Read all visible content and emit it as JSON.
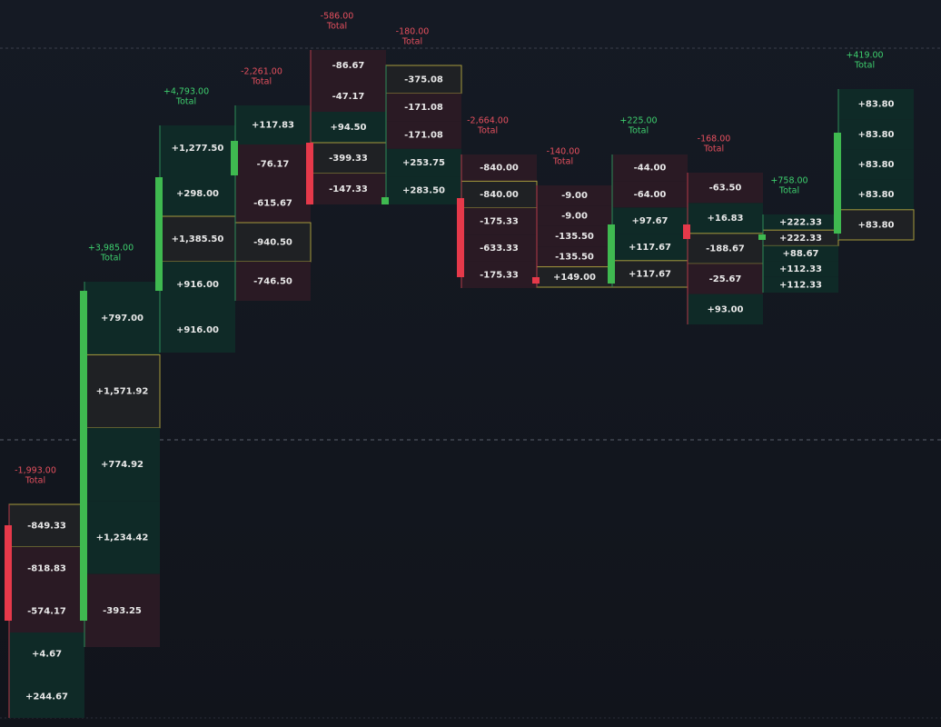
{
  "columns": [
    {
      "total": "-1,993.00",
      "total_label": "Total",
      "cells": [
        "-849.33",
        "-818.83",
        "-574.17",
        "+4.67",
        "+244.67"
      ],
      "highlighted": 0
    },
    {
      "total": "+3,985.00",
      "total_label": "Total",
      "cells": [
        "+797.00",
        "+1,571.92",
        "+774.92",
        "+1,234.42",
        "-393.25"
      ],
      "highlighted": 1
    },
    {
      "total": "+4,793.00",
      "total_label": "Total",
      "cells": [
        "+1,277.50",
        "+298.00",
        "+1,385.50",
        "+916.00",
        "+916.00"
      ],
      "highlighted": 2
    },
    {
      "total": "-2,261.00",
      "total_label": "Total",
      "cells": [
        "+117.83",
        "-76.17",
        "-615.67",
        "-940.50",
        "-746.50"
      ],
      "highlighted": 3
    },
    {
      "total": "-586.00",
      "total_label": "Total",
      "cells": [
        "-86.67",
        "-47.17",
        "+94.50",
        "-399.33",
        "-147.33"
      ],
      "highlighted": 3
    },
    {
      "total": "-180.00",
      "total_label": "Total",
      "cells": [
        "-375.08",
        "-171.08",
        "-171.08",
        "+253.75",
        "+283.50"
      ],
      "highlighted": 0
    },
    {
      "total": "-2,664.00",
      "total_label": "Total",
      "cells": [
        "-840.00",
        "-840.00",
        "-175.33",
        "-633.33",
        "-175.33"
      ],
      "highlighted": 1
    },
    {
      "total": "-140.00",
      "total_label": "Total",
      "cells": [
        "-9.00",
        "-9.00",
        "-135.50",
        "-135.50",
        "+149.00"
      ],
      "highlighted": 4
    },
    {
      "total": "+225.00",
      "total_label": "Total",
      "cells": [
        "-44.00",
        "-64.00",
        "+97.67",
        "+117.67",
        "+117.67"
      ],
      "highlighted": 4
    },
    {
      "total": "-168.00",
      "total_label": "Total",
      "cells": [
        "-63.50",
        "+16.83",
        "-188.67",
        "-25.67",
        "+93.00"
      ],
      "highlighted": 2
    },
    {
      "total": "+758.00",
      "total_label": "Total",
      "cells": [
        "+222.33",
        "+222.33",
        "+88.67",
        "+112.33",
        "+112.33"
      ],
      "highlighted": 1
    },
    {
      "total": "+419.00",
      "total_label": "Total",
      "cells": [
        "+83.80",
        "+83.80",
        "+83.80",
        "+83.80",
        "+83.80"
      ],
      "highlighted": 4
    }
  ]
}
